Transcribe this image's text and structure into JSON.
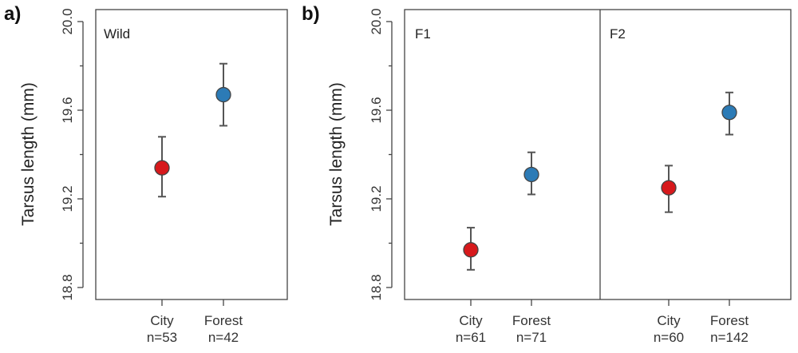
{
  "chart_data": [
    {
      "type": "scatter",
      "panel_letter": "a)",
      "ylabel": "Tarsus length (mm)",
      "ylim": [
        18.8,
        20.0
      ],
      "major_ticks": [
        18.8,
        19.2,
        19.6,
        20.0
      ],
      "tick_labels": [
        "18.8",
        "19.2",
        "19.6",
        "20.0"
      ],
      "minor_ticks": [
        19.0,
        19.4,
        19.8
      ],
      "grid": false,
      "groups": [
        {
          "label": "Wild",
          "points": [
            {
              "category": "City",
              "n_label": "n=53",
              "mean": 19.34,
              "lower": 19.21,
              "upper": 19.48,
              "color": "#d7191c"
            },
            {
              "category": "Forest",
              "n_label": "n=42",
              "mean": 19.67,
              "lower": 19.53,
              "upper": 19.81,
              "color": "#2c7bb6"
            }
          ]
        }
      ]
    },
    {
      "type": "scatter",
      "panel_letter": "b)",
      "ylabel": "Tarsus length (mm)",
      "ylim": [
        18.8,
        20.0
      ],
      "major_ticks": [
        18.8,
        19.2,
        19.6,
        20.0
      ],
      "tick_labels": [
        "18.8",
        "19.2",
        "19.6",
        "20.0"
      ],
      "minor_ticks": [
        19.0,
        19.4,
        19.8
      ],
      "grid": false,
      "groups": [
        {
          "label": "F1",
          "points": [
            {
              "category": "City",
              "n_label": "n=61",
              "mean": 18.97,
              "lower": 18.88,
              "upper": 19.07,
              "color": "#d7191c"
            },
            {
              "category": "Forest",
              "n_label": "n=71",
              "mean": 19.31,
              "lower": 19.22,
              "upper": 19.41,
              "color": "#2c7bb6"
            }
          ]
        },
        {
          "label": "F2",
          "points": [
            {
              "category": "City",
              "n_label": "n=60",
              "mean": 19.25,
              "lower": 19.14,
              "upper": 19.35,
              "color": "#d7191c"
            },
            {
              "category": "Forest",
              "n_label": "n=142",
              "mean": 19.59,
              "lower": 19.49,
              "upper": 19.68,
              "color": "#2c7bb6"
            }
          ]
        }
      ]
    }
  ]
}
